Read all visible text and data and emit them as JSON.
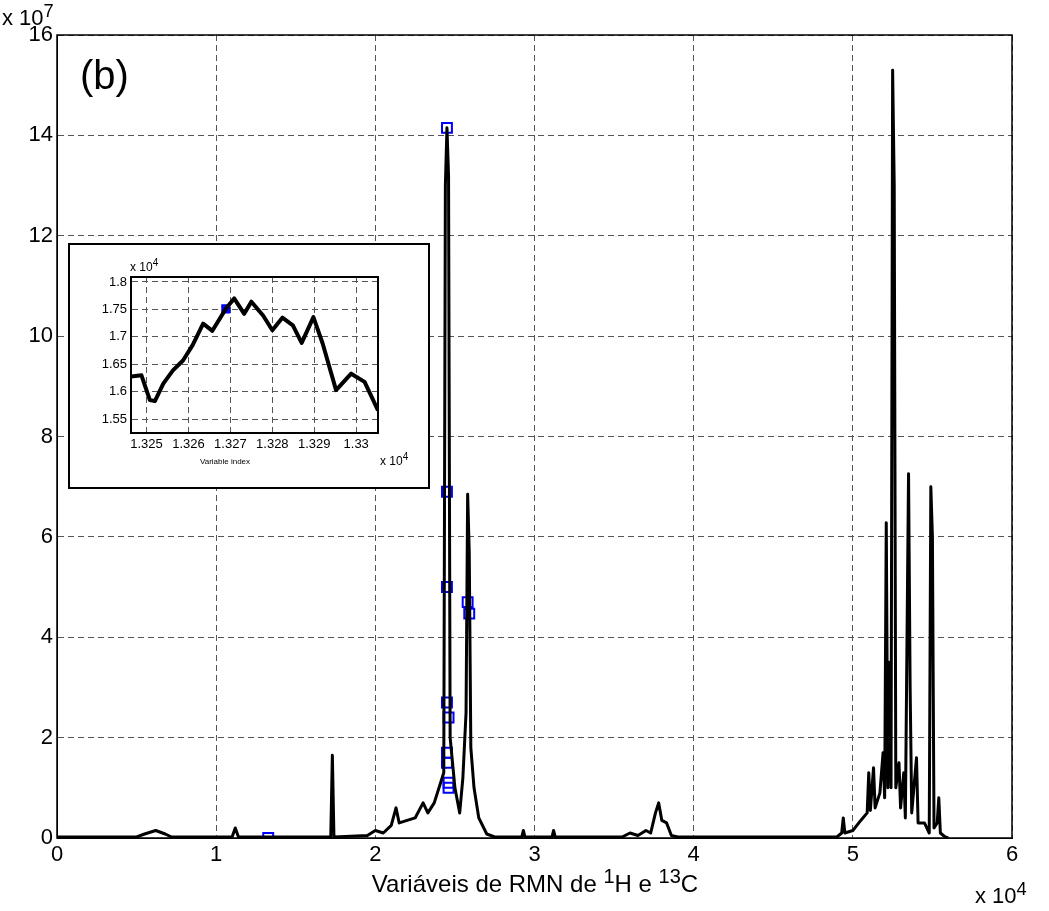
{
  "chart_data": [
    {
      "type": "line",
      "xlabel": "Variáveis de RMN de $^{1}$H e $^{13}$C",
      "xlim": [
        0,
        6
      ],
      "xticks": [
        0,
        1,
        2,
        3,
        4,
        5,
        6
      ],
      "ylim": [
        0,
        16
      ],
      "yticks": [
        0,
        2,
        4,
        6,
        8,
        10,
        12,
        14,
        16
      ],
      "grid": true,
      "annotations": [
        "(b)",
        "x 10$^{7}$",
        "x 10$^{4}$"
      ],
      "series": [
        {
          "type": "line",
          "color": "#000000",
          "x": [
            0,
            0.5,
            0.55,
            0.62,
            0.68,
            0.72,
            1.1,
            1.12,
            1.14,
            1.72,
            1.73,
            1.74,
            1.95,
            2.0,
            2.05,
            2.1,
            2.13,
            2.15,
            2.2,
            2.25,
            2.3,
            2.33,
            2.37,
            2.4,
            2.43,
            2.44,
            2.45,
            2.46,
            2.47,
            2.5,
            2.53,
            2.55,
            2.57,
            2.58,
            2.59,
            2.6,
            2.62,
            2.65,
            2.7,
            2.75,
            2.92,
            2.93,
            2.94,
            3.11,
            3.12,
            3.13,
            3.55,
            3.6,
            3.65,
            3.7,
            3.73,
            3.76,
            3.78,
            3.8,
            3.83,
            3.86,
            3.9,
            4.9,
            4.93,
            4.94,
            4.95,
            5.0,
            5.05,
            5.09,
            5.1,
            5.11,
            5.13,
            5.14,
            5.17,
            5.19,
            5.2,
            5.21,
            5.22,
            5.23,
            5.24,
            5.25,
            5.26,
            5.27,
            5.29,
            5.3,
            5.32,
            5.33,
            5.35,
            5.36,
            5.37,
            5.4,
            5.41,
            5.45,
            5.48,
            5.49,
            5.5,
            5.51,
            5.53,
            5.54,
            5.55,
            5.58,
            5.6
          ],
          "values": [
            0.02,
            0.02,
            0.08,
            0.15,
            0.08,
            0.02,
            0.02,
            0.2,
            0.02,
            0.02,
            1.65,
            0.02,
            0.05,
            0.15,
            0.1,
            0.25,
            0.6,
            0.3,
            0.35,
            0.4,
            0.7,
            0.5,
            0.7,
            1.0,
            1.3,
            13.0,
            14.15,
            13.2,
            2.0,
            1.0,
            0.5,
            1.2,
            2.5,
            6.85,
            5.7,
            1.8,
            1.0,
            0.4,
            0.08,
            0.02,
            0.02,
            0.15,
            0.02,
            0.02,
            0.15,
            0.02,
            0.02,
            0.1,
            0.05,
            0.15,
            0.1,
            0.5,
            0.7,
            0.35,
            0.3,
            0.05,
            0.02,
            0.02,
            0.1,
            0.4,
            0.1,
            0.15,
            0.35,
            0.5,
            1.3,
            0.55,
            1.4,
            0.6,
            0.9,
            1.7,
            0.8,
            6.28,
            1.0,
            3.5,
            1.0,
            15.3,
            13.0,
            1.0,
            1.5,
            0.6,
            1.3,
            0.4,
            7.26,
            3.0,
            0.5,
            1.6,
            0.3,
            0.3,
            0.1,
            7.0,
            6.0,
            0.2,
            0.3,
            0.8,
            0.1,
            0.02,
            0
          ]
        },
        {
          "type": "scatter",
          "marker": "square",
          "color": "#0000ff",
          "x": [
            1.327,
            2.45,
            2.45,
            2.45,
            2.58,
            2.59,
            2.45,
            2.46,
            2.45,
            2.45,
            2.46,
            2.46
          ],
          "values": [
            0,
            14.15,
            6.9,
            5.0,
            4.7,
            4.47,
            2.7,
            2.4,
            1.7,
            1.5,
            1.1,
            1.0
          ]
        }
      ]
    },
    {
      "type": "line",
      "xlabel": "Variable index",
      "xlim": [
        1.32463,
        1.33052
      ],
      "xticks": [
        1.325,
        1.326,
        1.327,
        1.328,
        1.329,
        1.33
      ],
      "ylim": [
        1.525,
        1.809
      ],
      "yticks": [
        1.55,
        1.6,
        1.65,
        1.7,
        1.75,
        1.8
      ],
      "grid": true,
      "annotations": [
        "x 10$^{4}$",
        "x 10$^{4}$"
      ],
      "series": [
        {
          "type": "line",
          "color": "#000000",
          "x": [
            1.32463,
            1.32488,
            1.32508,
            1.3252,
            1.3254,
            1.32563,
            1.32587,
            1.3261,
            1.32635,
            1.32657,
            1.32689,
            1.32709,
            1.32733,
            1.3275,
            1.32778,
            1.328,
            1.32824,
            1.32849,
            1.3287,
            1.32898,
            1.3292,
            1.32952,
            1.32988,
            1.3302,
            1.33052
          ],
          "values": [
            1.628,
            1.63,
            1.585,
            1.583,
            1.615,
            1.639,
            1.657,
            1.685,
            1.724,
            1.711,
            1.751,
            1.77,
            1.742,
            1.764,
            1.739,
            1.712,
            1.735,
            1.721,
            1.689,
            1.736,
            1.688,
            1.603,
            1.633,
            1.618,
            1.566
          ]
        },
        {
          "type": "scatter",
          "marker": "square",
          "color": "#0000ff",
          "x": [
            1.32689
          ],
          "values": [
            1.751
          ]
        }
      ]
    }
  ]
}
